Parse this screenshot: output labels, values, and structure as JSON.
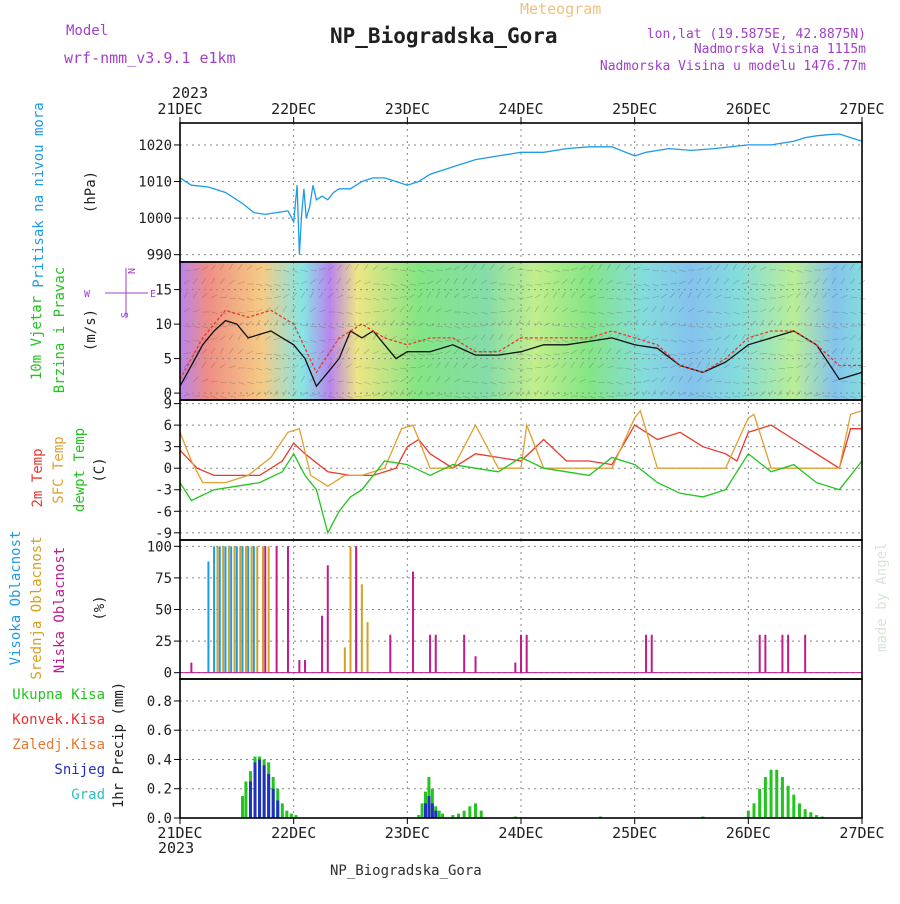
{
  "header": {
    "model_label": "Model",
    "model_name": "wrf-nmm_v3.9.1  e1km",
    "meteogram_label": "Meteogram",
    "station_title": "NP_Biogradska_Gora",
    "lonlat": "lon,lat (19.5875E, 42.8875N)",
    "altitude": "Nadmorska Visina 1115m",
    "model_altitude": "Nadmorska Visina u modelu 1476.77m",
    "year": "2023",
    "footer_station": "NP_Biogradska_Gora",
    "watermark": "made by Angel"
  },
  "time_axis": {
    "ticks": [
      "21DEC",
      "22DEC",
      "23DEC",
      "24DEC",
      "25DEC",
      "26DEC",
      "27DEC"
    ],
    "year_label": "2023"
  },
  "colors": {
    "pressure": "#1e9be8",
    "temp2m": "#e8392b",
    "sfc_temp": "#e0a030",
    "dewpoint": "#22c41e",
    "high_cloud": "#1e9be8",
    "mid_cloud": "#d4a020",
    "low_cloud": "#c01a8c",
    "total_precip": "#22c41e",
    "snow": "#2030c0",
    "grad": "#30c0c0",
    "conv": "#e83030",
    "zaledj": "#e87830",
    "purple_text": "#a040c8"
  },
  "panels": {
    "pressure": {
      "label": "Pritisak na nivou mora",
      "unit": "(hPa)"
    },
    "wind": {
      "label_line1": "10m Vjetar",
      "label_line2": "Brzina i Pravac",
      "unit": "(m/s)",
      "compass_n": "N",
      "compass_w": "W",
      "compass_e": "E",
      "compass_s": "S"
    },
    "temp": {
      "label_1": "2m Temp",
      "label_2": "SFC Temp",
      "label_3": "dewpt Temp",
      "unit": "(C)"
    },
    "cloud": {
      "label_1": "Visoka Oblacnost",
      "label_2": "Srednja Oblacnost",
      "label_3": "Niska Oblacnost",
      "unit": "(%)"
    },
    "precip": {
      "label_1": "Ukupna Kisa",
      "label_2": "Konvek.Kisa",
      "label_3": "Zaledj.Kisa",
      "label_4": "Snijeg",
      "label_5": "Grad",
      "unit": "1hr Precip (mm)"
    }
  },
  "chart_data": [
    {
      "type": "line",
      "panel": "pressure",
      "ylabel": "(hPa)",
      "ylim": [
        988,
        1026
      ],
      "yticks": [
        990,
        1000,
        1010,
        1020
      ],
      "x_unit": "days since 21DEC 00z",
      "series": [
        {
          "name": "Pritisak na nivou mora",
          "x": [
            0,
            0.1,
            0.25,
            0.4,
            0.55,
            0.65,
            0.75,
            0.85,
            0.95,
            1.0,
            1.03,
            1.05,
            1.07,
            1.09,
            1.11,
            1.14,
            1.17,
            1.2,
            1.25,
            1.3,
            1.35,
            1.4,
            1.5,
            1.6,
            1.7,
            1.8,
            1.9,
            2.0,
            2.1,
            2.2,
            2.4,
            2.6,
            2.8,
            3.0,
            3.2,
            3.4,
            3.6,
            3.8,
            4.0,
            4.1,
            4.3,
            4.5,
            4.7,
            5.0,
            5.2,
            5.4,
            5.5,
            5.6,
            5.7,
            5.8,
            5.9,
            6.0
          ],
          "values": [
            1011,
            1009,
            1008.5,
            1007,
            1004,
            1001.5,
            1001,
            1001.5,
            1002,
            999,
            1009,
            990,
            1001,
            1008,
            1000,
            1003,
            1009,
            1005,
            1006,
            1005,
            1007,
            1008,
            1008,
            1010,
            1011,
            1011,
            1010,
            1009,
            1010,
            1012,
            1014,
            1016,
            1017,
            1018,
            1018,
            1019,
            1019.5,
            1019.5,
            1017,
            1018,
            1019,
            1018.5,
            1019,
            1020,
            1020,
            1021,
            1022,
            1022.5,
            1022.8,
            1023,
            1022,
            1021
          ]
        }
      ]
    },
    {
      "type": "line",
      "panel": "wind",
      "ylabel": "(m/s)",
      "ylim": [
        -1,
        19
      ],
      "yticks": [
        0,
        5,
        10,
        15
      ],
      "series": [
        {
          "name": "10m wind speed",
          "x": [
            0,
            0.1,
            0.2,
            0.3,
            0.4,
            0.5,
            0.6,
            0.7,
            0.8,
            0.9,
            1.0,
            1.1,
            1.2,
            1.3,
            1.4,
            1.5,
            1.6,
            1.7,
            1.8,
            1.9,
            2.0,
            2.2,
            2.4,
            2.6,
            2.8,
            3.0,
            3.2,
            3.4,
            3.6,
            3.8,
            4.0,
            4.2,
            4.4,
            4.6,
            4.8,
            5.0,
            5.2,
            5.4,
            5.6,
            5.8,
            6.0
          ],
          "values": [
            1,
            4,
            7,
            9,
            10.5,
            10,
            8,
            8.5,
            9,
            8,
            7,
            5,
            1,
            3,
            5,
            9,
            8,
            9,
            7,
            5,
            6,
            6,
            7,
            5.5,
            5.5,
            6,
            7,
            7,
            7.5,
            8,
            7,
            6.5,
            4,
            3,
            4.5,
            7,
            8,
            9,
            7,
            2,
            3
          ]
        },
        {
          "name": "10m wind gust",
          "x": [
            0,
            0.2,
            0.4,
            0.6,
            0.8,
            1.0,
            1.2,
            1.4,
            1.6,
            1.8,
            2.0,
            2.2,
            2.4,
            2.6,
            2.8,
            3.0,
            3.2,
            3.4,
            3.6,
            3.8,
            4.0,
            4.2,
            4.4,
            4.6,
            4.8,
            5.0,
            5.2,
            5.4,
            5.6,
            5.8,
            6.0
          ],
          "values": [
            2,
            8,
            12,
            11,
            12,
            10,
            3,
            8,
            10,
            8,
            7,
            8,
            8,
            6,
            6,
            8,
            8,
            8,
            8,
            9,
            8,
            7,
            4,
            3,
            5,
            8,
            9,
            9,
            7,
            4,
            4
          ]
        }
      ]
    },
    {
      "type": "line",
      "panel": "temp",
      "ylabel": "(C)",
      "ylim": [
        -10,
        9.5
      ],
      "yticks": [
        -9,
        -6,
        -3,
        0,
        3,
        6,
        9
      ],
      "series": [
        {
          "name": "2m Temp",
          "x": [
            0,
            0.15,
            0.3,
            0.5,
            0.7,
            0.9,
            1.0,
            1.1,
            1.3,
            1.5,
            1.7,
            1.9,
            2.0,
            2.1,
            2.2,
            2.4,
            2.6,
            2.8,
            3.0,
            3.2,
            3.4,
            3.6,
            3.8,
            4.0,
            4.2,
            4.4,
            4.6,
            4.8,
            4.9,
            5.0,
            5.2,
            5.4,
            5.6,
            5.8,
            5.9,
            6.0
          ],
          "values": [
            2.5,
            0,
            -1,
            -1,
            -1,
            1,
            3.5,
            2,
            -0.5,
            -1,
            -1,
            0,
            3,
            4,
            2,
            0,
            2,
            1.5,
            1,
            4,
            1,
            1,
            0.5,
            6,
            4,
            5,
            3,
            2,
            1,
            5,
            6,
            4,
            2,
            0,
            5.5,
            5.5
          ]
        },
        {
          "name": "SFC Temp",
          "x": [
            0,
            0.1,
            0.2,
            0.4,
            0.6,
            0.8,
            0.95,
            1.05,
            1.15,
            1.3,
            1.45,
            1.6,
            1.8,
            1.95,
            2.05,
            2.2,
            2.4,
            2.6,
            2.8,
            3.0,
            3.05,
            3.2,
            3.4,
            3.6,
            3.8,
            4.0,
            4.05,
            4.2,
            4.4,
            4.6,
            4.8,
            5.0,
            5.05,
            5.2,
            5.4,
            5.6,
            5.8,
            5.9,
            6.0
          ],
          "values": [
            5,
            1,
            -2,
            -2,
            -1,
            1.5,
            5,
            5.5,
            -1,
            -2.5,
            -1,
            -1,
            0,
            5.5,
            6,
            0,
            0,
            6,
            0,
            0,
            6,
            0,
            0,
            0,
            0,
            7,
            8,
            0,
            0,
            0,
            0,
            7,
            7.5,
            0,
            0,
            0,
            0,
            7.5,
            8
          ]
        },
        {
          "name": "dewpt Temp",
          "x": [
            0,
            0.1,
            0.3,
            0.5,
            0.7,
            0.9,
            1.0,
            1.1,
            1.2,
            1.3,
            1.4,
            1.5,
            1.6,
            1.8,
            2.0,
            2.2,
            2.4,
            2.6,
            2.8,
            3.0,
            3.2,
            3.4,
            3.6,
            3.8,
            4.0,
            4.2,
            4.4,
            4.6,
            4.8,
            5.0,
            5.2,
            5.4,
            5.6,
            5.8,
            6.0
          ],
          "values": [
            -2,
            -4.5,
            -3,
            -2.5,
            -2,
            -0.5,
            2,
            -1,
            -3,
            -9,
            -6,
            -4,
            -3,
            1,
            0.5,
            -1,
            0.5,
            0,
            -0.5,
            1.5,
            0,
            -0.5,
            -1,
            1.5,
            0.5,
            -2,
            -3.5,
            -4,
            -3,
            2,
            -0.5,
            0.5,
            -2,
            -3,
            1
          ]
        }
      ]
    },
    {
      "type": "bar",
      "panel": "cloud",
      "ylabel": "(%)",
      "ylim": [
        -5,
        105
      ],
      "yticks": [
        0,
        25,
        50,
        75,
        100
      ],
      "series": [
        {
          "name": "Visoka Oblacnost",
          "x": [
            0.25,
            0.3,
            0.35,
            0.4,
            0.45,
            0.5,
            0.55,
            0.6,
            0.65
          ],
          "values": [
            88,
            100,
            100,
            100,
            100,
            100,
            100,
            100,
            100
          ]
        },
        {
          "name": "Srednja Oblacnost",
          "x": [
            0.33,
            0.38,
            0.43,
            0.48,
            0.53,
            0.58,
            0.63,
            0.68,
            0.73,
            0.78,
            1.45,
            1.5,
            1.55,
            1.6,
            1.65
          ],
          "values": [
            100,
            100,
            100,
            100,
            100,
            100,
            100,
            100,
            100,
            100,
            20,
            100,
            100,
            70,
            40
          ]
        },
        {
          "name": "Niska Oblacnost",
          "x": [
            0.1,
            0.75,
            0.85,
            0.95,
            1.05,
            1.1,
            1.25,
            1.3,
            1.55,
            1.85,
            2.05,
            2.2,
            2.25,
            2.5,
            2.6,
            2.95,
            3.0,
            3.05,
            4.1,
            4.15,
            5.1,
            5.15,
            5.3,
            5.35,
            5.5
          ],
          "values": [
            8,
            100,
            100,
            100,
            10,
            10,
            45,
            85,
            100,
            30,
            80,
            30,
            30,
            30,
            13,
            8,
            30,
            30,
            30,
            30,
            30,
            30,
            30,
            30,
            30
          ]
        }
      ]
    },
    {
      "type": "bar",
      "panel": "precip",
      "ylabel": "1hr Precip (mm)",
      "ylim": [
        0,
        0.95
      ],
      "yticks": [
        0.0,
        0.2,
        0.4,
        0.6,
        0.8
      ],
      "series": [
        {
          "name": "Ukupna Kisa",
          "x": [
            0.55,
            0.58,
            0.62,
            0.66,
            0.7,
            0.74,
            0.78,
            0.82,
            0.86,
            0.9,
            0.94,
            0.98,
            1.02,
            2.1,
            2.13,
            2.16,
            2.19,
            2.22,
            2.25,
            2.28,
            2.31,
            2.4,
            2.45,
            2.5,
            2.55,
            2.6,
            2.65,
            2.95,
            3.7,
            4.6,
            5.0,
            5.05,
            5.1,
            5.15,
            5.2,
            5.25,
            5.3,
            5.35,
            5.4,
            5.45,
            5.5,
            5.55,
            5.6,
            5.65
          ],
          "values": [
            0.15,
            0.25,
            0.32,
            0.42,
            0.42,
            0.4,
            0.38,
            0.28,
            0.2,
            0.1,
            0.05,
            0.03,
            0.02,
            0.02,
            0.1,
            0.18,
            0.28,
            0.2,
            0.08,
            0.05,
            0.03,
            0.02,
            0.03,
            0.05,
            0.08,
            0.1,
            0.05,
            0.01,
            0.01,
            0.01,
            0.05,
            0.1,
            0.2,
            0.28,
            0.33,
            0.33,
            0.28,
            0.22,
            0.16,
            0.1,
            0.06,
            0.04,
            0.02,
            0.01
          ]
        },
        {
          "name": "Snijeg",
          "x": [
            0.62,
            0.66,
            0.7,
            0.74,
            0.78,
            0.82,
            0.86,
            2.16,
            2.19,
            2.22,
            2.25
          ],
          "values": [
            0.25,
            0.38,
            0.4,
            0.36,
            0.3,
            0.2,
            0.12,
            0.1,
            0.15,
            0.1,
            0.05
          ]
        }
      ]
    }
  ]
}
